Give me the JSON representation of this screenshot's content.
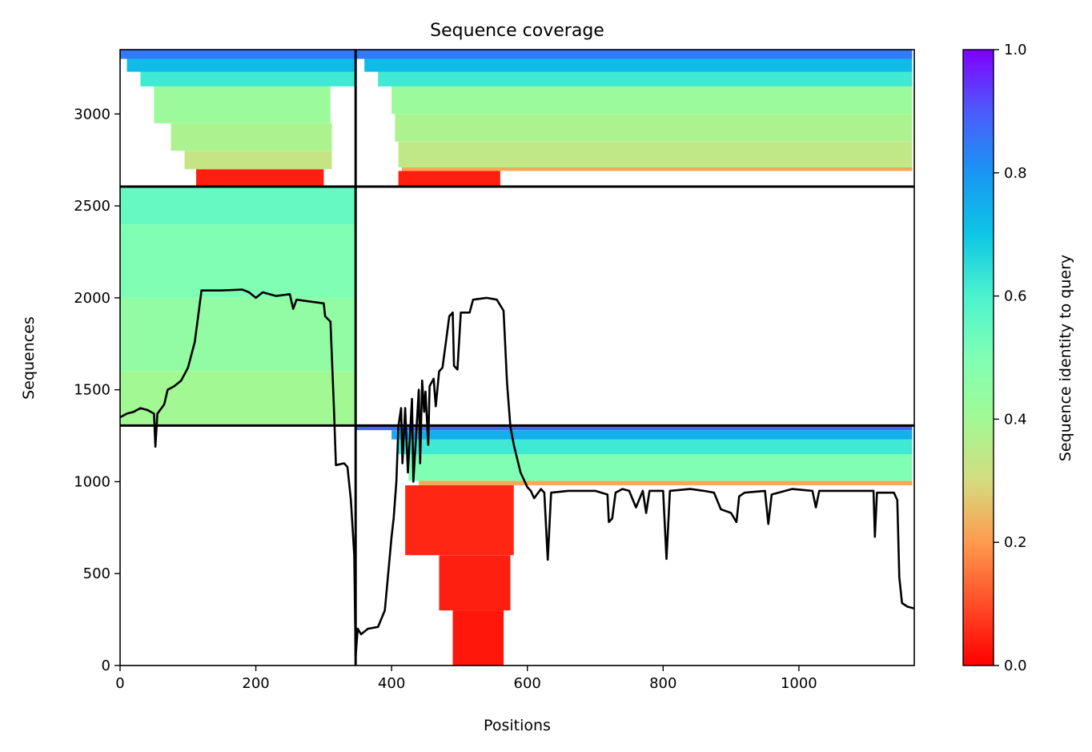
{
  "chart_data": {
    "type": "heatmap",
    "title": "Sequence coverage",
    "xlabel": "Positions",
    "ylabel": "Sequences",
    "xlim": [
      0,
      1170
    ],
    "ylim": [
      0,
      3350
    ],
    "x_ticks": [
      0,
      200,
      400,
      600,
      800,
      1000
    ],
    "y_ticks": [
      0,
      500,
      1000,
      1500,
      2000,
      2500,
      3000
    ],
    "grid": false,
    "colorbar": {
      "label": "Sequence identity to query",
      "range": [
        0,
        1
      ],
      "ticks": [
        "0.0",
        "0.2",
        "0.4",
        "0.6",
        "0.8",
        "1.0"
      ],
      "colormap": "rainbow"
    },
    "block_boundaries": {
      "x": [
        347
      ],
      "y": [
        1305,
        2605
      ]
    },
    "blocks": [
      {
        "name": "top-left",
        "x": [
          0,
          347
        ],
        "y": [
          2605,
          3350
        ],
        "rows": [
          {
            "y": [
              2605,
              2700
            ],
            "x": [
              112,
              300
            ],
            "identity": 0.04
          },
          {
            "y": [
              2700,
              2800
            ],
            "x": [
              95,
              312
            ],
            "identity": 0.33
          },
          {
            "y": [
              2800,
              2950
            ],
            "x": [
              75,
              312
            ],
            "identity": 0.38
          },
          {
            "y": [
              2950,
              3150
            ],
            "x": [
              50,
              310
            ],
            "identity": 0.42
          },
          {
            "y": [
              3150,
              3230
            ],
            "x": [
              30,
              347
            ],
            "identity": 0.62
          },
          {
            "y": [
              3230,
              3300
            ],
            "x": [
              10,
              347
            ],
            "identity": 0.72
          },
          {
            "y": [
              3300,
              3350
            ],
            "x": [
              0,
              347
            ],
            "identity": 0.85
          }
        ]
      },
      {
        "name": "top-right",
        "x": [
          347,
          1170
        ],
        "y": [
          2605,
          3350
        ],
        "rows": [
          {
            "y": [
              2605,
              2690
            ],
            "x": [
              410,
              560
            ],
            "identity": 0.04
          },
          {
            "y": [
              2690,
              2710
            ],
            "x": [
              415,
              1167
            ],
            "identity": 0.22
          },
          {
            "y": [
              2710,
              2850
            ],
            "x": [
              410,
              1167
            ],
            "identity": 0.34
          },
          {
            "y": [
              2850,
              3000
            ],
            "x": [
              405,
              1167
            ],
            "identity": 0.38
          },
          {
            "y": [
              3000,
              3150
            ],
            "x": [
              400,
              1167
            ],
            "identity": 0.42
          },
          {
            "y": [
              3150,
              3230
            ],
            "x": [
              380,
              1167
            ],
            "identity": 0.62
          },
          {
            "y": [
              3230,
              3300
            ],
            "x": [
              360,
              1167
            ],
            "identity": 0.72
          },
          {
            "y": [
              3300,
              3350
            ],
            "x": [
              347,
              1167
            ],
            "identity": 0.85
          }
        ]
      },
      {
        "name": "middle-left",
        "x": [
          0,
          347
        ],
        "y": [
          1305,
          2605
        ],
        "rows": [
          {
            "y": [
              1305,
              1600
            ],
            "x": [
              0,
              347
            ],
            "identity": 0.4
          },
          {
            "y": [
              1600,
              2000
            ],
            "x": [
              0,
              347
            ],
            "identity": 0.45
          },
          {
            "y": [
              2000,
              2400
            ],
            "x": [
              0,
              347
            ],
            "identity": 0.5
          },
          {
            "y": [
              2400,
              2605
            ],
            "x": [
              0,
              347
            ],
            "identity": 0.55
          }
        ]
      },
      {
        "name": "bottom-right",
        "x": [
          347,
          1170
        ],
        "y": [
          0,
          1305
        ],
        "rows": [
          {
            "y": [
              0,
              300
            ],
            "x": [
              490,
              565
            ],
            "identity": 0.03
          },
          {
            "y": [
              300,
              600
            ],
            "x": [
              470,
              575
            ],
            "identity": 0.04
          },
          {
            "y": [
              600,
              980
            ],
            "x": [
              420,
              580
            ],
            "identity": 0.05
          },
          {
            "y": [
              980,
              1005
            ],
            "x": [
              440,
              1167
            ],
            "identity": 0.22
          },
          {
            "y": [
              1005,
              1150
            ],
            "x": [
              425,
              1167
            ],
            "identity": 0.5
          },
          {
            "y": [
              1150,
              1230
            ],
            "x": [
              410,
              1167
            ],
            "identity": 0.62
          },
          {
            "y": [
              1230,
              1280
            ],
            "x": [
              400,
              1167
            ],
            "identity": 0.75
          },
          {
            "y": [
              1280,
              1305
            ],
            "x": [
              347,
              1167
            ],
            "identity": 0.88
          }
        ]
      }
    ],
    "coverage_line": {
      "name": "coverage",
      "color": "#000000",
      "points": [
        [
          0,
          1350
        ],
        [
          10,
          1370
        ],
        [
          20,
          1380
        ],
        [
          30,
          1400
        ],
        [
          40,
          1390
        ],
        [
          50,
          1370
        ],
        [
          52,
          1190
        ],
        [
          55,
          1370
        ],
        [
          65,
          1420
        ],
        [
          70,
          1500
        ],
        [
          80,
          1520
        ],
        [
          90,
          1550
        ],
        [
          100,
          1620
        ],
        [
          110,
          1760
        ],
        [
          115,
          1900
        ],
        [
          120,
          2040
        ],
        [
          150,
          2040
        ],
        [
          180,
          2045
        ],
        [
          190,
          2030
        ],
        [
          200,
          2000
        ],
        [
          210,
          2030
        ],
        [
          230,
          2010
        ],
        [
          250,
          2020
        ],
        [
          255,
          1940
        ],
        [
          260,
          1990
        ],
        [
          300,
          1970
        ],
        [
          302,
          1900
        ],
        [
          310,
          1870
        ],
        [
          315,
          1400
        ],
        [
          318,
          1090
        ],
        [
          330,
          1100
        ],
        [
          335,
          1080
        ],
        [
          340,
          900
        ],
        [
          345,
          600
        ],
        [
          347,
          50
        ],
        [
          350,
          200
        ],
        [
          355,
          170
        ],
        [
          365,
          200
        ],
        [
          380,
          210
        ],
        [
          390,
          300
        ],
        [
          395,
          500
        ],
        [
          400,
          700
        ],
        [
          403,
          800
        ],
        [
          407,
          1000
        ],
        [
          410,
          1300
        ],
        [
          414,
          1400
        ],
        [
          416,
          1100
        ],
        [
          420,
          1400
        ],
        [
          424,
          1050
        ],
        [
          430,
          1450
        ],
        [
          432,
          1000
        ],
        [
          440,
          1500
        ],
        [
          442,
          1100
        ],
        [
          445,
          1550
        ],
        [
          448,
          1380
        ],
        [
          450,
          1490
        ],
        [
          454,
          1200
        ],
        [
          456,
          1520
        ],
        [
          462,
          1560
        ],
        [
          465,
          1410
        ],
        [
          470,
          1600
        ],
        [
          475,
          1620
        ],
        [
          480,
          1760
        ],
        [
          485,
          1900
        ],
        [
          490,
          1920
        ],
        [
          492,
          1630
        ],
        [
          497,
          1610
        ],
        [
          502,
          1920
        ],
        [
          515,
          1920
        ],
        [
          520,
          1990
        ],
        [
          540,
          2000
        ],
        [
          555,
          1990
        ],
        [
          565,
          1930
        ],
        [
          570,
          1540
        ],
        [
          575,
          1300
        ],
        [
          580,
          1200
        ],
        [
          590,
          1050
        ],
        [
          600,
          970
        ],
        [
          605,
          950
        ],
        [
          610,
          910
        ],
        [
          620,
          960
        ],
        [
          625,
          940
        ],
        [
          630,
          575
        ],
        [
          635,
          940
        ],
        [
          660,
          950
        ],
        [
          700,
          950
        ],
        [
          718,
          930
        ],
        [
          720,
          780
        ],
        [
          725,
          800
        ],
        [
          730,
          940
        ],
        [
          740,
          960
        ],
        [
          750,
          950
        ],
        [
          760,
          860
        ],
        [
          770,
          950
        ],
        [
          775,
          830
        ],
        [
          780,
          950
        ],
        [
          800,
          950
        ],
        [
          805,
          580
        ],
        [
          810,
          950
        ],
        [
          840,
          960
        ],
        [
          860,
          950
        ],
        [
          875,
          940
        ],
        [
          885,
          850
        ],
        [
          900,
          830
        ],
        [
          908,
          780
        ],
        [
          912,
          920
        ],
        [
          920,
          940
        ],
        [
          950,
          950
        ],
        [
          955,
          770
        ],
        [
          960,
          930
        ],
        [
          980,
          950
        ],
        [
          990,
          960
        ],
        [
          1020,
          950
        ],
        [
          1025,
          860
        ],
        [
          1030,
          950
        ],
        [
          1080,
          950
        ],
        [
          1110,
          950
        ],
        [
          1112,
          700
        ],
        [
          1115,
          940
        ],
        [
          1140,
          940
        ],
        [
          1145,
          900
        ],
        [
          1148,
          480
        ],
        [
          1152,
          340
        ],
        [
          1160,
          320
        ],
        [
          1170,
          310
        ]
      ]
    }
  }
}
